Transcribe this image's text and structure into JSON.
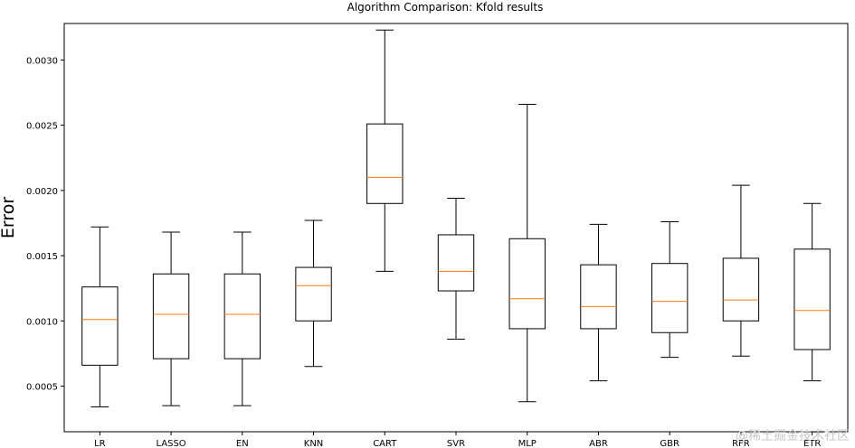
{
  "chart_data": {
    "type": "boxplot",
    "title": "Algorithm Comparison: Kfold results",
    "xlabel": "",
    "ylabel": "Error",
    "ylim": [
      0.00015,
      0.00328
    ],
    "yticks": [
      0.0005,
      0.001,
      0.0015,
      0.002,
      0.0025,
      0.003
    ],
    "ytick_labels": [
      "0.0005",
      "0.0010",
      "0.0015",
      "0.0020",
      "0.0025",
      "0.0030"
    ],
    "categories": [
      "LR",
      "LASSO",
      "EN",
      "KNN",
      "CART",
      "SVR",
      "MLP",
      "ABR",
      "GBR",
      "RFR",
      "ETR"
    ],
    "boxes": [
      {
        "name": "LR",
        "whisker_low": 0.00034,
        "q1": 0.00066,
        "median": 0.00101,
        "q3": 0.00126,
        "whisker_high": 0.00172
      },
      {
        "name": "LASSO",
        "whisker_low": 0.00035,
        "q1": 0.00071,
        "median": 0.00105,
        "q3": 0.00136,
        "whisker_high": 0.00168
      },
      {
        "name": "EN",
        "whisker_low": 0.00035,
        "q1": 0.00071,
        "median": 0.00105,
        "q3": 0.00136,
        "whisker_high": 0.00168
      },
      {
        "name": "KNN",
        "whisker_low": 0.00065,
        "q1": 0.001,
        "median": 0.00127,
        "q3": 0.00141,
        "whisker_high": 0.00177
      },
      {
        "name": "CART",
        "whisker_low": 0.00138,
        "q1": 0.0019,
        "median": 0.0021,
        "q3": 0.00251,
        "whisker_high": 0.00323
      },
      {
        "name": "SVR",
        "whisker_low": 0.00086,
        "q1": 0.00123,
        "median": 0.00138,
        "q3": 0.00166,
        "whisker_high": 0.00194
      },
      {
        "name": "MLP",
        "whisker_low": 0.00038,
        "q1": 0.00094,
        "median": 0.00117,
        "q3": 0.00163,
        "whisker_high": 0.00266
      },
      {
        "name": "ABR",
        "whisker_low": 0.00054,
        "q1": 0.00094,
        "median": 0.00111,
        "q3": 0.00143,
        "whisker_high": 0.00174
      },
      {
        "name": "GBR",
        "whisker_low": 0.00072,
        "q1": 0.00091,
        "median": 0.00115,
        "q3": 0.00144,
        "whisker_high": 0.00176
      },
      {
        "name": "RFR",
        "whisker_low": 0.00073,
        "q1": 0.001,
        "median": 0.00116,
        "q3": 0.00148,
        "whisker_high": 0.00204
      },
      {
        "name": "ETR",
        "whisker_low": 0.00054,
        "q1": 0.00078,
        "median": 0.00108,
        "q3": 0.00155,
        "whisker_high": 0.0019
      }
    ],
    "colors": {
      "box": "#000000",
      "median": "#ff7f0e",
      "axes": "#000000"
    }
  },
  "watermark": "@稀土掘金技术社区"
}
